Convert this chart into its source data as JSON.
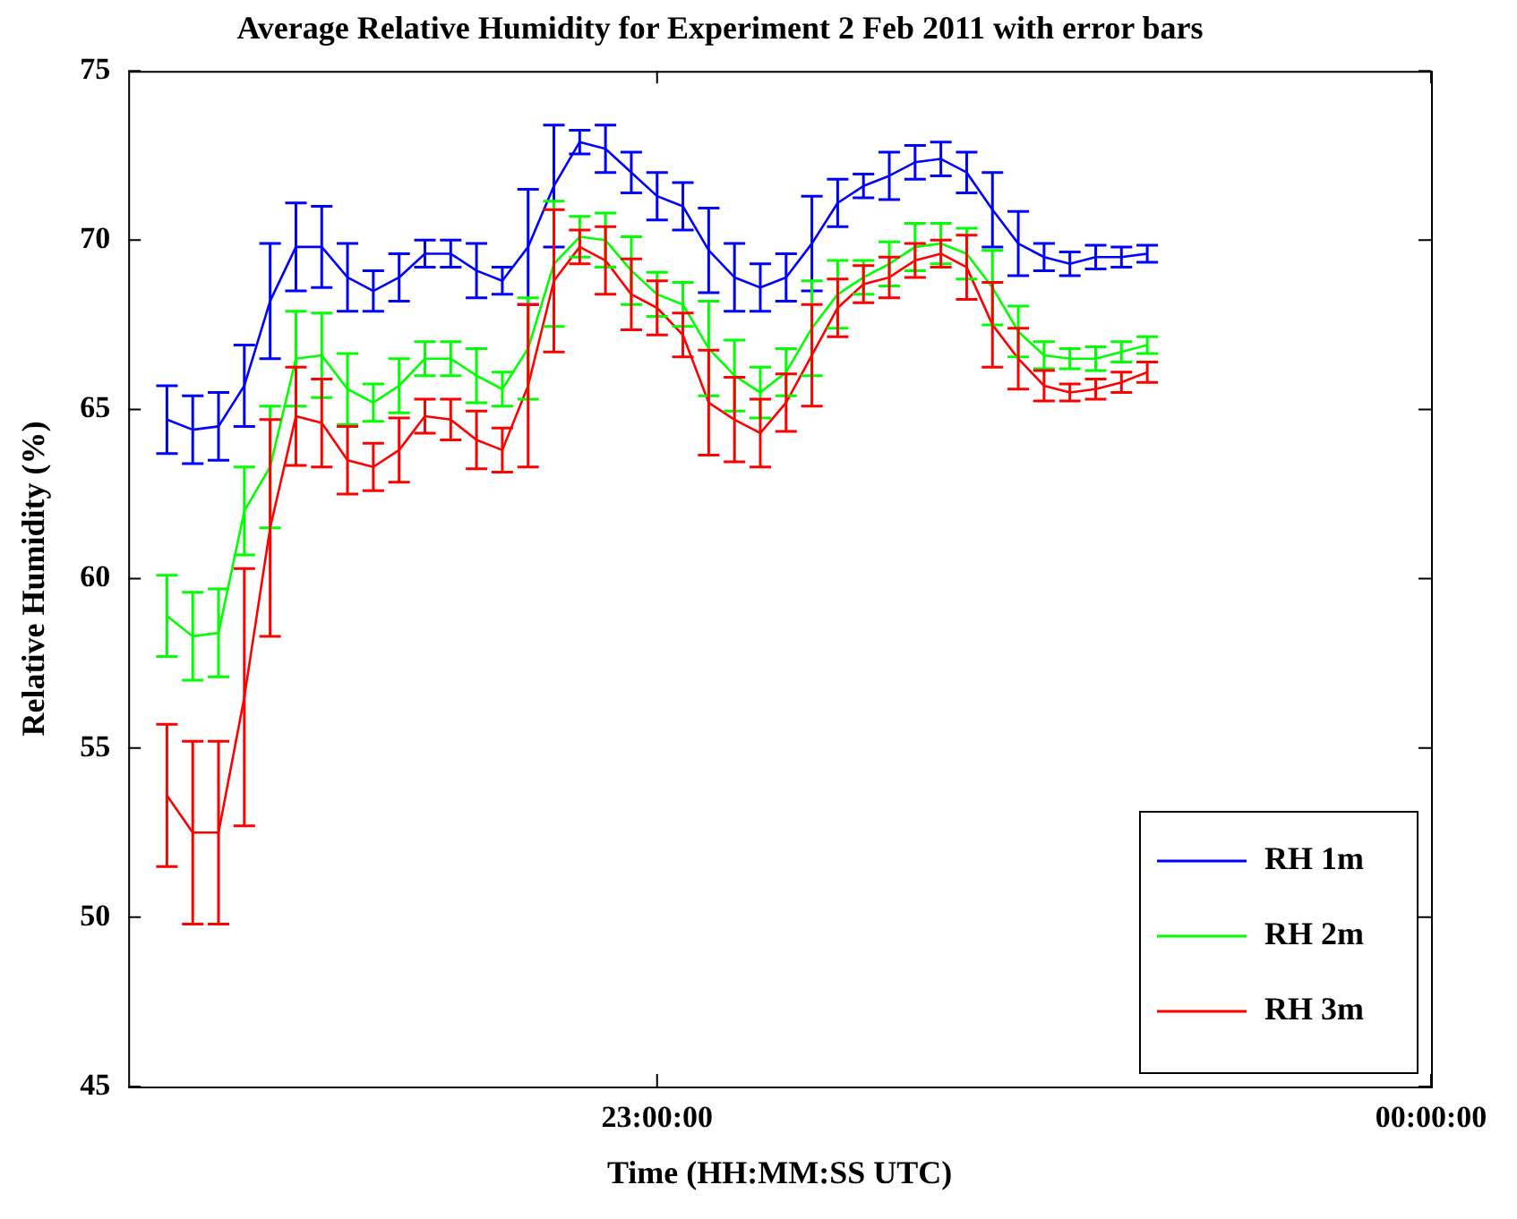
{
  "chart_data": {
    "type": "line",
    "title": "Average Relative Humidity for Experiment 2 Feb 2011 with error bars",
    "xlabel": "Time (HH:MM:SS UTC)",
    "ylabel": "Relative Humidity (%)",
    "x": [
      "2011-02-02T22:22",
      "2011-02-02T22:24",
      "2011-02-02T22:26",
      "2011-02-02T22:28",
      "2011-02-02T22:30",
      "2011-02-02T22:32",
      "2011-02-02T22:34",
      "2011-02-02T22:36",
      "2011-02-02T22:38",
      "2011-02-02T22:40",
      "2011-02-02T22:42",
      "2011-02-02T22:44",
      "2011-02-02T22:46",
      "2011-02-02T22:48",
      "2011-02-02T22:50",
      "2011-02-02T22:52",
      "2011-02-02T22:54",
      "2011-02-02T22:56",
      "2011-02-02T22:58",
      "2011-02-02T23:00",
      "2011-02-02T23:02",
      "2011-02-02T23:04",
      "2011-02-02T23:06",
      "2011-02-02T23:08",
      "2011-02-02T23:10",
      "2011-02-02T23:12",
      "2011-02-02T23:14",
      "2011-02-02T23:16",
      "2011-02-02T23:18",
      "2011-02-02T23:20",
      "2011-02-02T23:22",
      "2011-02-02T23:24",
      "2011-02-02T23:26",
      "2011-02-02T23:28",
      "2011-02-02T23:30",
      "2011-02-02T23:32",
      "2011-02-02T23:34",
      "2011-02-02T23:36",
      "2011-02-02T23:38"
    ],
    "xlim": [
      "2011-02-02T22:19",
      "2011-02-03T00:00"
    ],
    "xticks": [
      {
        "value": "2011-02-02T23:00",
        "label": "23:00:00"
      },
      {
        "value": "2011-02-03T00:00",
        "label": "00:00:00"
      }
    ],
    "ylim": [
      45,
      75
    ],
    "yticks": [
      45,
      50,
      55,
      60,
      65,
      70,
      75
    ],
    "grid": false,
    "legend": "bottom right",
    "marker": "none",
    "line_style": "solid",
    "series": [
      {
        "name": "RH 1m",
        "color": "#0000ff",
        "values": [
          64.7,
          64.4,
          64.5,
          65.7,
          68.2,
          69.8,
          69.8,
          68.9,
          68.5,
          68.9,
          69.6,
          69.6,
          69.1,
          68.8,
          69.8,
          71.6,
          72.9,
          72.7,
          72.0,
          71.3,
          71.0,
          69.7,
          68.9,
          68.6,
          68.9,
          69.9,
          71.1,
          71.6,
          71.9,
          72.3,
          72.4,
          72.0,
          70.9,
          69.9,
          69.5,
          69.3,
          69.5,
          69.5,
          69.6
        ],
        "errors": [
          1.0,
          1.0,
          1.0,
          1.2,
          1.7,
          1.3,
          1.2,
          1.0,
          0.6,
          0.7,
          0.4,
          0.4,
          0.8,
          0.4,
          1.7,
          1.8,
          0.35,
          0.7,
          0.6,
          0.7,
          0.7,
          1.25,
          1.0,
          0.7,
          0.7,
          1.4,
          0.7,
          0.35,
          0.7,
          0.5,
          0.5,
          0.6,
          1.1,
          0.95,
          0.4,
          0.35,
          0.35,
          0.3,
          0.25
        ]
      },
      {
        "name": "RH 2m",
        "color": "#00ff00",
        "values": [
          58.9,
          58.3,
          58.4,
          62.0,
          63.3,
          66.5,
          66.6,
          65.6,
          65.2,
          65.7,
          66.5,
          66.5,
          66.0,
          65.6,
          66.8,
          69.3,
          70.1,
          70.0,
          69.1,
          68.4,
          68.1,
          66.8,
          66.0,
          65.5,
          66.1,
          67.4,
          68.4,
          68.9,
          69.3,
          69.8,
          69.9,
          69.6,
          68.6,
          67.3,
          66.6,
          66.5,
          66.5,
          66.7,
          66.9
        ],
        "errors": [
          1.2,
          1.3,
          1.3,
          1.3,
          1.8,
          1.4,
          1.25,
          1.05,
          0.55,
          0.8,
          0.5,
          0.5,
          0.8,
          0.5,
          1.5,
          1.85,
          0.6,
          0.8,
          1.0,
          0.65,
          0.65,
          1.4,
          1.05,
          0.75,
          0.7,
          1.4,
          1.0,
          0.5,
          0.65,
          0.7,
          0.6,
          0.75,
          1.1,
          0.75,
          0.4,
          0.3,
          0.35,
          0.3,
          0.25
        ]
      },
      {
        "name": "RH 3m",
        "color": "#ff0000",
        "values": [
          53.6,
          52.5,
          52.5,
          56.5,
          61.5,
          64.8,
          64.6,
          63.5,
          63.3,
          63.8,
          64.8,
          64.7,
          64.1,
          63.8,
          65.7,
          68.8,
          69.8,
          69.4,
          68.4,
          68.0,
          67.2,
          65.2,
          64.7,
          64.3,
          65.2,
          66.6,
          68.0,
          68.7,
          68.9,
          69.4,
          69.6,
          69.2,
          67.5,
          66.5,
          65.7,
          65.5,
          65.6,
          65.8,
          66.1
        ],
        "errors": [
          2.1,
          2.7,
          2.7,
          3.8,
          3.2,
          1.45,
          1.3,
          1.0,
          0.7,
          0.95,
          0.5,
          0.6,
          0.85,
          0.65,
          2.4,
          2.1,
          0.5,
          1.0,
          1.05,
          0.8,
          0.65,
          1.55,
          1.25,
          1.0,
          0.85,
          1.5,
          0.85,
          0.55,
          0.6,
          0.5,
          0.4,
          0.95,
          1.25,
          0.9,
          0.45,
          0.25,
          0.3,
          0.3,
          0.3
        ]
      }
    ]
  }
}
